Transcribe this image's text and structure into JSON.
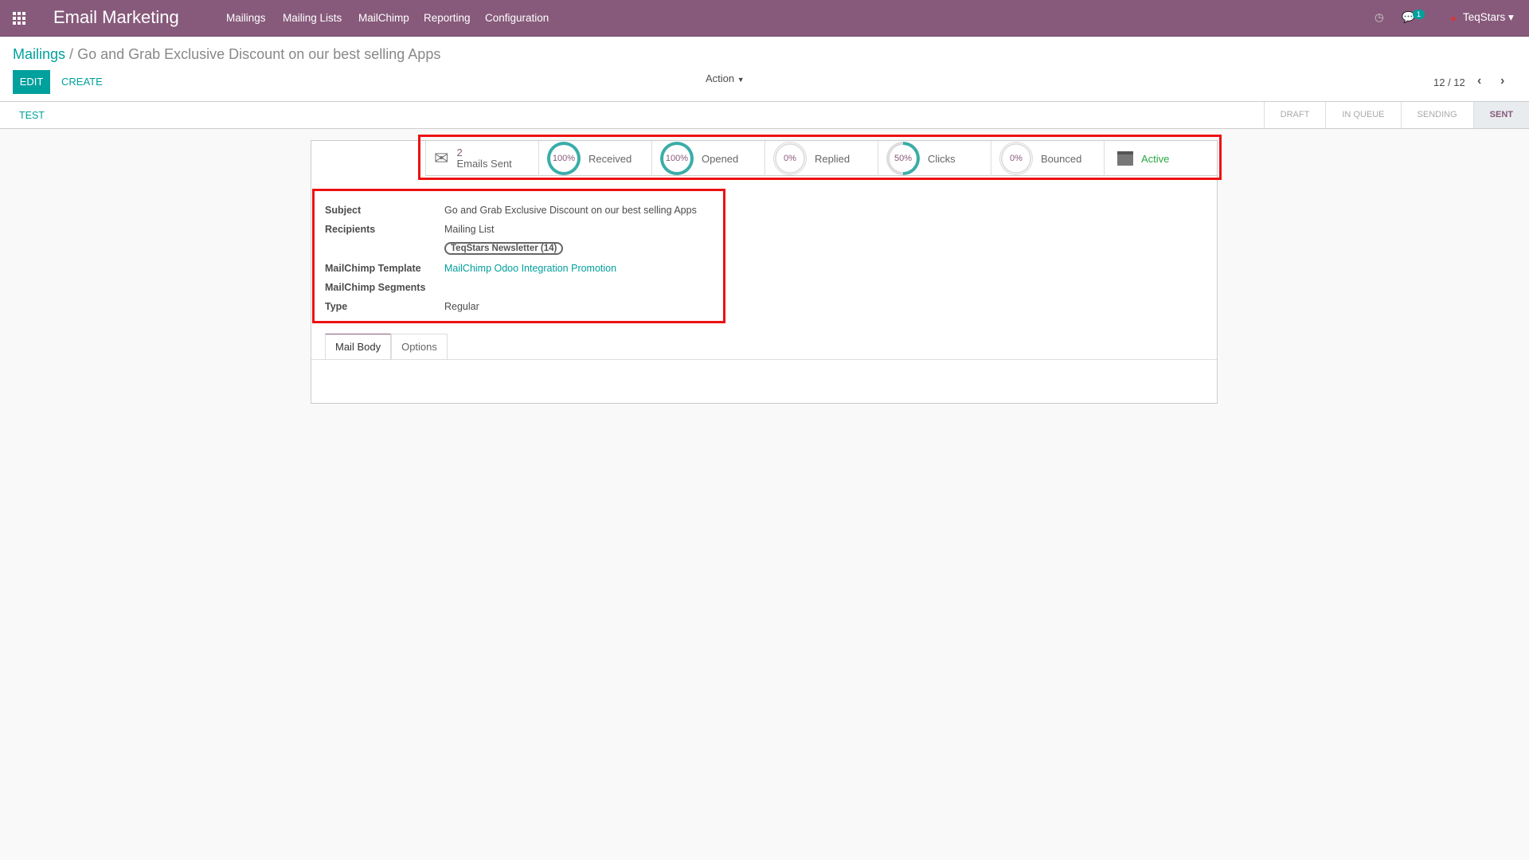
{
  "app": {
    "title": "Email Marketing",
    "menu": [
      "Mailings",
      "Mailing Lists",
      "MailChimp",
      "Reporting",
      "Configuration"
    ],
    "chat_count": "1",
    "user": "TeqStars"
  },
  "breadcrumb": {
    "parent": "Mailings",
    "separator": "/",
    "current": "Go and Grab Exclusive Discount on our best selling Apps"
  },
  "buttons": {
    "edit": "EDIT",
    "create": "CREATE",
    "action": "Action"
  },
  "pager": "12 / 12",
  "statusbar": {
    "test": "TEST",
    "stages": [
      "DRAFT",
      "IN QUEUE",
      "SENDING",
      "SENT"
    ],
    "active_stage": "SENT"
  },
  "stats": {
    "emails_sent": {
      "count": "2",
      "label": "Emails Sent"
    },
    "rings": [
      {
        "value": "100%",
        "pct": 100,
        "label": "Received"
      },
      {
        "value": "100%",
        "pct": 100,
        "label": "Opened"
      },
      {
        "value": "0%",
        "pct": 0,
        "label": "Replied"
      },
      {
        "value": "50%",
        "pct": 50,
        "label": "Clicks"
      },
      {
        "value": "0%",
        "pct": 0,
        "label": "Bounced"
      }
    ],
    "active": "Active"
  },
  "fields": {
    "subject_label": "Subject",
    "subject": "Go and Grab Exclusive Discount on our best selling Apps",
    "recipients_label": "Recipients",
    "recipients": "Mailing List",
    "recipients_tag": "TeqStars Newsletter (14)",
    "template_label": "MailChimp Template",
    "template": "MailChimp Odoo Integration Promotion",
    "segments_label": "MailChimp Segments",
    "type_label": "Type",
    "type": "Regular"
  },
  "tabs": [
    "Mail Body",
    "Options"
  ],
  "colors": {
    "brand": "#875a7b",
    "accent": "#00a09d",
    "highlight": "#ee1111"
  }
}
